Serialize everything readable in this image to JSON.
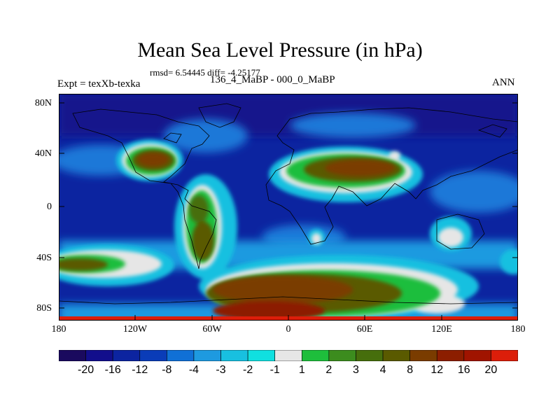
{
  "title": "Mean Sea Level Pressure (in hPa)",
  "stats_line": "rmsd= 6.54445 diff= -4.25177",
  "experiment_label": "Expt = texXb-texka",
  "subtitle": "136_4_MaBP - 000_0_MaBP",
  "season": "ANN",
  "axes": {
    "lat_ticks": [
      "80N",
      "40N",
      "0",
      "40S",
      "80S"
    ],
    "lon_ticks": [
      "180",
      "120W",
      "60W",
      "0",
      "60E",
      "120E",
      "180"
    ]
  },
  "colorbar": {
    "colors": [
      "#1a0a5e",
      "#120e8c",
      "#0c24a0",
      "#0a3cb8",
      "#1070d6",
      "#1e9ae0",
      "#18c0e0",
      "#10e0e0",
      "#e6e6e6",
      "#1ebe3c",
      "#3c8c1e",
      "#466e0c",
      "#5a5a00",
      "#7a3c00",
      "#8c1e00",
      "#a01400",
      "#dc1e0a"
    ],
    "labels": [
      "-20",
      "-16",
      "-12",
      "-8",
      "-4",
      "-3",
      "-2",
      "-1",
      "1",
      "2",
      "3",
      "4",
      "8",
      "12",
      "16",
      "20"
    ]
  }
}
